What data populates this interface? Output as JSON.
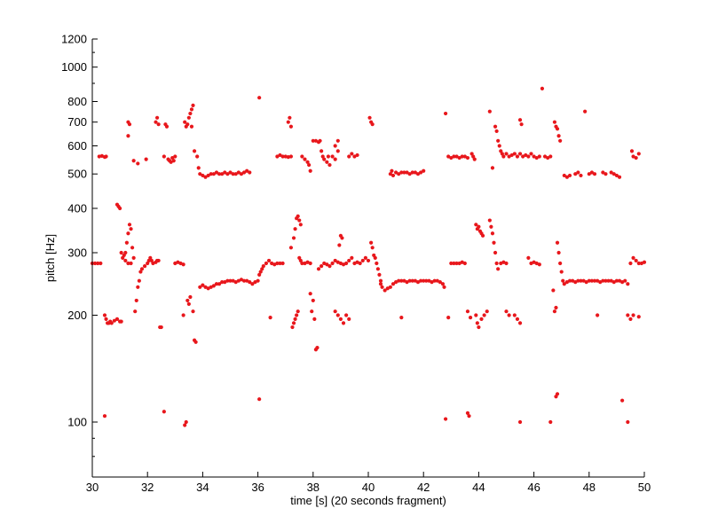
{
  "chart_data": {
    "type": "scatter",
    "xlabel": "time [s] (20 seconds fragment)",
    "ylabel": "pitch [Hz]",
    "xlim": [
      30,
      50
    ],
    "ylim": [
      70,
      1200
    ],
    "y_scale": "log",
    "grid": false,
    "marker_color": "#e8171c",
    "x_ticks": [
      30,
      32,
      34,
      36,
      38,
      40,
      42,
      44,
      46,
      48,
      50
    ],
    "y_ticks": [
      100,
      200,
      300,
      400,
      500,
      600,
      700,
      800,
      1000,
      1200
    ],
    "points": [
      [
        30.0,
        280
      ],
      [
        30.1,
        280
      ],
      [
        30.2,
        280
      ],
      [
        30.3,
        280
      ],
      [
        30.25,
        560
      ],
      [
        30.35,
        562
      ],
      [
        30.45,
        558
      ],
      [
        30.5,
        560
      ],
      [
        30.45,
        104
      ],
      [
        30.45,
        200
      ],
      [
        30.5,
        195
      ],
      [
        30.55,
        190
      ],
      [
        30.6,
        190
      ],
      [
        30.65,
        192
      ],
      [
        30.7,
        190
      ],
      [
        30.8,
        193
      ],
      [
        30.9,
        195
      ],
      [
        31.0,
        192
      ],
      [
        31.05,
        192
      ],
      [
        30.9,
        410
      ],
      [
        30.95,
        405
      ],
      [
        31.0,
        400
      ],
      [
        31.05,
        300
      ],
      [
        31.1,
        290
      ],
      [
        31.15,
        295
      ],
      [
        31.2,
        300
      ],
      [
        31.25,
        320
      ],
      [
        31.3,
        340
      ],
      [
        31.35,
        360
      ],
      [
        31.4,
        350
      ],
      [
        31.45,
        310
      ],
      [
        31.5,
        290
      ],
      [
        31.2,
        285
      ],
      [
        31.3,
        280
      ],
      [
        31.4,
        280
      ],
      [
        31.3,
        700
      ],
      [
        31.3,
        640
      ],
      [
        31.35,
        690
      ],
      [
        31.5,
        545
      ],
      [
        31.65,
        535
      ],
      [
        31.55,
        205
      ],
      [
        31.6,
        220
      ],
      [
        31.65,
        240
      ],
      [
        31.7,
        250
      ],
      [
        31.75,
        265
      ],
      [
        31.8,
        270
      ],
      [
        31.9,
        275
      ],
      [
        32.0,
        280
      ],
      [
        32.05,
        285
      ],
      [
        32.1,
        290
      ],
      [
        32.15,
        285
      ],
      [
        32.2,
        280
      ],
      [
        32.3,
        282
      ],
      [
        32.35,
        285
      ],
      [
        32.4,
        285
      ],
      [
        31.95,
        550
      ],
      [
        32.3,
        700
      ],
      [
        32.35,
        720
      ],
      [
        32.4,
        690
      ],
      [
        32.45,
        185
      ],
      [
        32.5,
        185
      ],
      [
        32.6,
        560
      ],
      [
        32.65,
        690
      ],
      [
        32.7,
        680
      ],
      [
        32.75,
        550
      ],
      [
        32.8,
        545
      ],
      [
        32.9,
        555
      ],
      [
        33.0,
        560
      ],
      [
        32.85,
        540
      ],
      [
        32.95,
        545
      ],
      [
        32.6,
        107
      ],
      [
        33.0,
        280
      ],
      [
        33.1,
        282
      ],
      [
        33.2,
        280
      ],
      [
        33.3,
        278
      ],
      [
        33.3,
        200
      ],
      [
        33.35,
        98
      ],
      [
        33.4,
        100
      ],
      [
        33.35,
        700
      ],
      [
        33.4,
        680
      ],
      [
        33.45,
        690
      ],
      [
        33.5,
        720
      ],
      [
        33.55,
        740
      ],
      [
        33.6,
        760
      ],
      [
        33.65,
        780
      ],
      [
        33.6,
        680
      ],
      [
        33.45,
        220
      ],
      [
        33.5,
        215
      ],
      [
        33.55,
        225
      ],
      [
        33.65,
        205
      ],
      [
        33.7,
        170
      ],
      [
        33.75,
        168
      ],
      [
        33.7,
        580
      ],
      [
        33.8,
        560
      ],
      [
        33.85,
        520
      ],
      [
        33.9,
        500
      ],
      [
        34.0,
        495
      ],
      [
        34.1,
        490
      ],
      [
        34.2,
        495
      ],
      [
        34.3,
        500
      ],
      [
        34.4,
        500
      ],
      [
        34.5,
        505
      ],
      [
        34.6,
        500
      ],
      [
        34.7,
        500
      ],
      [
        34.8,
        505
      ],
      [
        34.9,
        500
      ],
      [
        35.0,
        505
      ],
      [
        35.1,
        500
      ],
      [
        35.2,
        500
      ],
      [
        35.3,
        505
      ],
      [
        35.4,
        500
      ],
      [
        35.5,
        505
      ],
      [
        35.6,
        510
      ],
      [
        35.7,
        505
      ],
      [
        33.9,
        240
      ],
      [
        34.0,
        243
      ],
      [
        34.1,
        240
      ],
      [
        34.2,
        238
      ],
      [
        34.3,
        240
      ],
      [
        34.4,
        242
      ],
      [
        34.5,
        245
      ],
      [
        34.6,
        245
      ],
      [
        34.7,
        248
      ],
      [
        34.8,
        248
      ],
      [
        34.9,
        250
      ],
      [
        35.0,
        250
      ],
      [
        35.1,
        250
      ],
      [
        35.2,
        248
      ],
      [
        35.3,
        250
      ],
      [
        35.4,
        252
      ],
      [
        35.5,
        250
      ],
      [
        35.6,
        250
      ],
      [
        35.7,
        248
      ],
      [
        35.8,
        245
      ],
      [
        35.9,
        248
      ],
      [
        36.0,
        250
      ],
      [
        36.05,
        260
      ],
      [
        36.1,
        265
      ],
      [
        36.15,
        270
      ],
      [
        36.2,
        275
      ],
      [
        36.3,
        280
      ],
      [
        36.4,
        285
      ],
      [
        36.5,
        280
      ],
      [
        36.6,
        278
      ],
      [
        36.7,
        280
      ],
      [
        36.8,
        280
      ],
      [
        36.9,
        280
      ],
      [
        36.05,
        820
      ],
      [
        36.05,
        116
      ],
      [
        36.45,
        197
      ],
      [
        36.7,
        560
      ],
      [
        36.8,
        565
      ],
      [
        36.9,
        560
      ],
      [
        37.0,
        560
      ],
      [
        37.1,
        558
      ],
      [
        37.2,
        560
      ],
      [
        37.1,
        700
      ],
      [
        37.15,
        720
      ],
      [
        37.2,
        680
      ],
      [
        37.2,
        310
      ],
      [
        37.3,
        330
      ],
      [
        37.35,
        350
      ],
      [
        37.4,
        375
      ],
      [
        37.45,
        380
      ],
      [
        37.5,
        370
      ],
      [
        37.55,
        360
      ],
      [
        37.5,
        290
      ],
      [
        37.55,
        285
      ],
      [
        37.6,
        280
      ],
      [
        37.7,
        280
      ],
      [
        37.8,
        282
      ],
      [
        37.9,
        280
      ],
      [
        37.25,
        185
      ],
      [
        37.3,
        190
      ],
      [
        37.35,
        195
      ],
      [
        37.4,
        200
      ],
      [
        37.45,
        205
      ],
      [
        37.6,
        560
      ],
      [
        37.7,
        550
      ],
      [
        37.8,
        540
      ],
      [
        37.85,
        530
      ],
      [
        37.9,
        510
      ],
      [
        37.9,
        230
      ],
      [
        38.0,
        220
      ],
      [
        37.95,
        205
      ],
      [
        38.05,
        195
      ],
      [
        38.1,
        160
      ],
      [
        38.15,
        162
      ],
      [
        38.0,
        620
      ],
      [
        38.1,
        620
      ],
      [
        38.2,
        615
      ],
      [
        38.25,
        620
      ],
      [
        38.3,
        580
      ],
      [
        38.35,
        560
      ],
      [
        38.4,
        550
      ],
      [
        38.5,
        540
      ],
      [
        38.55,
        560
      ],
      [
        38.6,
        530
      ],
      [
        38.7,
        560
      ],
      [
        38.8,
        550
      ],
      [
        38.9,
        580
      ],
      [
        38.8,
        600
      ],
      [
        38.9,
        620
      ],
      [
        38.2,
        270
      ],
      [
        38.3,
        275
      ],
      [
        38.4,
        280
      ],
      [
        38.5,
        278
      ],
      [
        38.6,
        275
      ],
      [
        38.7,
        280
      ],
      [
        38.8,
        285
      ],
      [
        38.9,
        282
      ],
      [
        39.0,
        280
      ],
      [
        39.1,
        278
      ],
      [
        39.2,
        280
      ],
      [
        39.3,
        285
      ],
      [
        39.4,
        290
      ],
      [
        39.5,
        280
      ],
      [
        39.6,
        282
      ],
      [
        39.7,
        280
      ],
      [
        39.8,
        285
      ],
      [
        39.9,
        290
      ],
      [
        40.0,
        285
      ],
      [
        38.95,
        315
      ],
      [
        39.0,
        335
      ],
      [
        39.05,
        330
      ],
      [
        38.8,
        205
      ],
      [
        38.9,
        200
      ],
      [
        39.0,
        195
      ],
      [
        39.1,
        190
      ],
      [
        39.2,
        200
      ],
      [
        39.3,
        195
      ],
      [
        39.3,
        560
      ],
      [
        39.4,
        570
      ],
      [
        39.5,
        560
      ],
      [
        39.6,
        565
      ],
      [
        40.05,
        720
      ],
      [
        40.1,
        700
      ],
      [
        40.15,
        690
      ],
      [
        40.1,
        320
      ],
      [
        40.15,
        310
      ],
      [
        40.2,
        295
      ],
      [
        40.25,
        290
      ],
      [
        40.3,
        280
      ],
      [
        40.35,
        270
      ],
      [
        40.4,
        260
      ],
      [
        40.45,
        250
      ],
      [
        40.45,
        245
      ],
      [
        40.5,
        240
      ],
      [
        40.6,
        235
      ],
      [
        40.7,
        238
      ],
      [
        40.8,
        240
      ],
      [
        40.9,
        245
      ],
      [
        41.0,
        248
      ],
      [
        41.1,
        250
      ],
      [
        41.2,
        250
      ],
      [
        41.3,
        250
      ],
      [
        41.4,
        248
      ],
      [
        41.5,
        250
      ],
      [
        41.6,
        250
      ],
      [
        41.7,
        250
      ],
      [
        41.8,
        248
      ],
      [
        41.9,
        250
      ],
      [
        42.0,
        250
      ],
      [
        42.1,
        250
      ],
      [
        42.2,
        250
      ],
      [
        42.3,
        248
      ],
      [
        42.4,
        250
      ],
      [
        42.5,
        250
      ],
      [
        42.6,
        248
      ],
      [
        42.7,
        245
      ],
      [
        42.75,
        240
      ],
      [
        40.8,
        500
      ],
      [
        40.85,
        510
      ],
      [
        40.9,
        495
      ],
      [
        41.0,
        505
      ],
      [
        41.1,
        500
      ],
      [
        41.2,
        505
      ],
      [
        41.3,
        505
      ],
      [
        41.4,
        505
      ],
      [
        41.5,
        500
      ],
      [
        41.6,
        505
      ],
      [
        41.7,
        505
      ],
      [
        41.8,
        500
      ],
      [
        41.9,
        505
      ],
      [
        42.0,
        510
      ],
      [
        41.2,
        197
      ],
      [
        42.8,
        740
      ],
      [
        42.8,
        102
      ],
      [
        42.9,
        560
      ],
      [
        43.0,
        555
      ],
      [
        43.1,
        560
      ],
      [
        43.2,
        560
      ],
      [
        43.3,
        555
      ],
      [
        43.4,
        560
      ],
      [
        43.5,
        560
      ],
      [
        43.6,
        555
      ],
      [
        43.0,
        280
      ],
      [
        43.1,
        280
      ],
      [
        43.2,
        280
      ],
      [
        43.3,
        280
      ],
      [
        43.4,
        282
      ],
      [
        43.5,
        280
      ],
      [
        42.9,
        197
      ],
      [
        43.6,
        205
      ],
      [
        43.7,
        197
      ],
      [
        43.6,
        106
      ],
      [
        43.65,
        104
      ],
      [
        43.75,
        570
      ],
      [
        43.8,
        560
      ],
      [
        43.85,
        550
      ],
      [
        43.9,
        200
      ],
      [
        43.95,
        190
      ],
      [
        44.0,
        185
      ],
      [
        44.1,
        195
      ],
      [
        44.2,
        200
      ],
      [
        44.3,
        205
      ],
      [
        43.9,
        360
      ],
      [
        43.95,
        350
      ],
      [
        44.0,
        355
      ],
      [
        44.05,
        345
      ],
      [
        44.1,
        340
      ],
      [
        44.15,
        335
      ],
      [
        44.4,
        370
      ],
      [
        44.45,
        355
      ],
      [
        44.5,
        340
      ],
      [
        44.55,
        320
      ],
      [
        44.6,
        300
      ],
      [
        44.65,
        280
      ],
      [
        44.7,
        270
      ],
      [
        44.4,
        750
      ],
      [
        44.5,
        520
      ],
      [
        44.6,
        680
      ],
      [
        44.65,
        660
      ],
      [
        44.7,
        620
      ],
      [
        44.75,
        600
      ],
      [
        44.8,
        580
      ],
      [
        44.85,
        570
      ],
      [
        44.9,
        560
      ],
      [
        45.0,
        570
      ],
      [
        45.1,
        560
      ],
      [
        45.2,
        565
      ],
      [
        45.3,
        570
      ],
      [
        45.4,
        560
      ],
      [
        45.5,
        570
      ],
      [
        45.6,
        560
      ],
      [
        45.7,
        565
      ],
      [
        45.8,
        560
      ],
      [
        45.9,
        570
      ],
      [
        46.0,
        560
      ],
      [
        46.1,
        555
      ],
      [
        46.2,
        560
      ],
      [
        45.5,
        710
      ],
      [
        45.55,
        690
      ],
      [
        44.8,
        280
      ],
      [
        44.9,
        282
      ],
      [
        45.0,
        280
      ],
      [
        45.0,
        205
      ],
      [
        45.1,
        200
      ],
      [
        45.3,
        200
      ],
      [
        45.4,
        195
      ],
      [
        45.5,
        190
      ],
      [
        45.5,
        100
      ],
      [
        45.8,
        290
      ],
      [
        45.9,
        280
      ],
      [
        46.0,
        282
      ],
      [
        46.1,
        280
      ],
      [
        46.2,
        278
      ],
      [
        46.3,
        870
      ],
      [
        46.4,
        560
      ],
      [
        46.5,
        555
      ],
      [
        46.6,
        560
      ],
      [
        46.6,
        100
      ],
      [
        46.8,
        118
      ],
      [
        46.85,
        120
      ],
      [
        46.75,
        700
      ],
      [
        46.8,
        680
      ],
      [
        46.85,
        670
      ],
      [
        46.9,
        640
      ],
      [
        46.95,
        620
      ],
      [
        46.7,
        235
      ],
      [
        46.75,
        205
      ],
      [
        46.8,
        210
      ],
      [
        46.85,
        320
      ],
      [
        46.9,
        300
      ],
      [
        46.95,
        280
      ],
      [
        47.0,
        265
      ],
      [
        47.05,
        250
      ],
      [
        47.1,
        245
      ],
      [
        47.2,
        248
      ],
      [
        47.3,
        250
      ],
      [
        47.4,
        250
      ],
      [
        47.5,
        248
      ],
      [
        47.6,
        250
      ],
      [
        47.7,
        250
      ],
      [
        47.8,
        250
      ],
      [
        47.9,
        248
      ],
      [
        48.0,
        250
      ],
      [
        48.1,
        250
      ],
      [
        48.2,
        250
      ],
      [
        48.3,
        250
      ],
      [
        48.4,
        248
      ],
      [
        48.5,
        250
      ],
      [
        48.6,
        250
      ],
      [
        48.7,
        250
      ],
      [
        48.8,
        250
      ],
      [
        48.9,
        248
      ],
      [
        49.0,
        250
      ],
      [
        49.1,
        250
      ],
      [
        49.2,
        248
      ],
      [
        49.3,
        250
      ],
      [
        49.4,
        245
      ],
      [
        47.1,
        495
      ],
      [
        47.2,
        490
      ],
      [
        47.3,
        495
      ],
      [
        47.5,
        500
      ],
      [
        47.6,
        505
      ],
      [
        47.7,
        495
      ],
      [
        48.0,
        500
      ],
      [
        48.1,
        505
      ],
      [
        48.2,
        500
      ],
      [
        48.5,
        505
      ],
      [
        48.6,
        500
      ],
      [
        48.8,
        505
      ],
      [
        48.9,
        500
      ],
      [
        49.0,
        495
      ],
      [
        49.1,
        490
      ],
      [
        47.85,
        750
      ],
      [
        48.3,
        200
      ],
      [
        49.2,
        115
      ],
      [
        49.4,
        100
      ],
      [
        49.4,
        200
      ],
      [
        49.5,
        195
      ],
      [
        49.6,
        200
      ],
      [
        49.8,
        198
      ],
      [
        49.5,
        280
      ],
      [
        49.6,
        290
      ],
      [
        49.7,
        285
      ],
      [
        49.8,
        280
      ],
      [
        49.9,
        280
      ],
      [
        50.0,
        282
      ],
      [
        49.55,
        580
      ],
      [
        49.6,
        560
      ],
      [
        49.7,
        555
      ],
      [
        49.8,
        570
      ]
    ]
  }
}
